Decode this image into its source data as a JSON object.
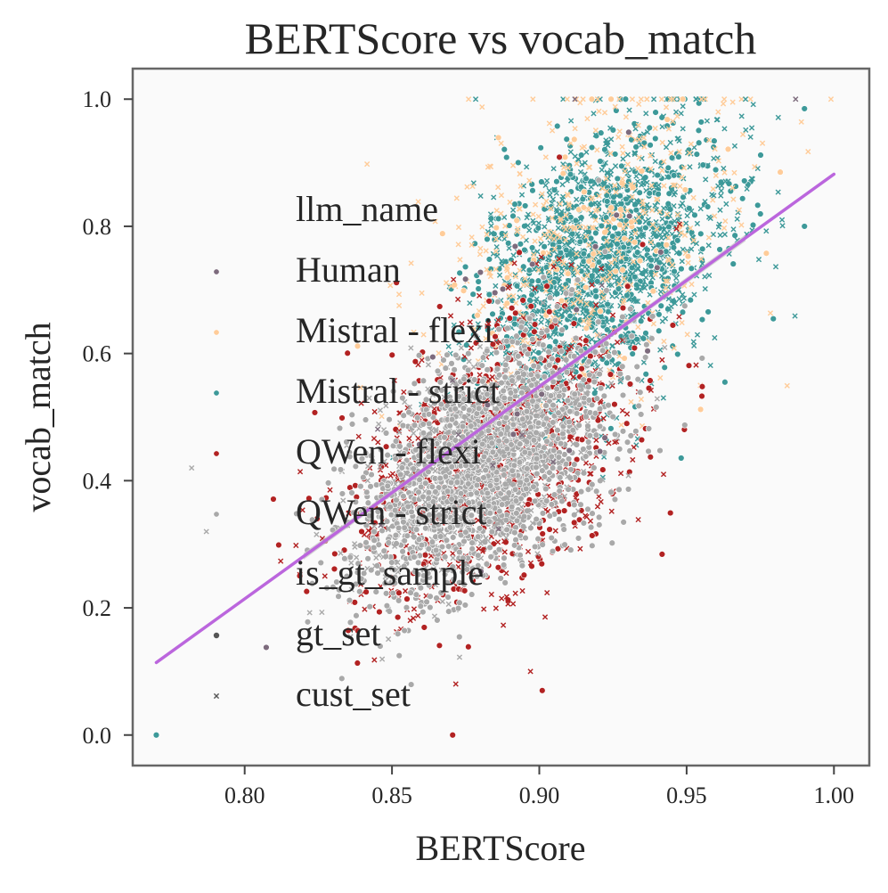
{
  "chart_data": {
    "type": "scatter",
    "title": "BERTScore vs vocab_match",
    "xlabel": "BERTScore",
    "ylabel": "vocab_match",
    "xlim": [
      0.762,
      1.012
    ],
    "ylim": [
      -0.048,
      1.048
    ],
    "xticks": [
      0.8,
      0.85,
      0.9,
      0.95,
      1.0
    ],
    "xtick_labels": [
      "0.80",
      "0.85",
      "0.90",
      "0.95",
      "1.00"
    ],
    "yticks": [
      0.0,
      0.2,
      0.4,
      0.6,
      0.8,
      1.0
    ],
    "ytick_labels": [
      "0.0",
      "0.2",
      "0.4",
      "0.6",
      "0.8",
      "1.0"
    ],
    "grid": false,
    "legend_placement": "center-left",
    "legend": {
      "hue_title": "llm_name",
      "hue_entries": [
        {
          "name": "Human",
          "color": "#7d6b7d"
        },
        {
          "name": "Mistral - flexi",
          "color": "#ffcc99"
        },
        {
          "name": "Mistral - strict",
          "color": "#3d9999"
        },
        {
          "name": "QWen - flexi",
          "color": "#b22222"
        },
        {
          "name": "QWen - strict",
          "color": "#a9a9a9"
        }
      ],
      "style_title": "is_gt_sample",
      "style_entries": [
        {
          "name": "gt_set",
          "marker": "circle",
          "color": "#555555"
        },
        {
          "name": "cust_set",
          "marker": "x",
          "color": "#555555"
        }
      ]
    },
    "regression_line": {
      "color": "#bb66dd",
      "x": [
        0.77,
        1.0
      ],
      "y": [
        0.114,
        0.882
      ],
      "ci_band": true
    },
    "clusters": [
      {
        "series": "Mistral - strict",
        "color": "#3d9999",
        "cx": 0.92,
        "cy": 0.74,
        "sx": 0.021,
        "sy": 0.1,
        "count": 1700,
        "x_frac": 0.58
      },
      {
        "series": "Mistral - flexi",
        "color": "#ffcc99",
        "cx": 0.915,
        "cy": 0.76,
        "sx": 0.027,
        "sy": 0.12,
        "count": 500,
        "x_frac": 0.85
      },
      {
        "series": "QWen - flexi",
        "color": "#b22222",
        "cx": 0.885,
        "cy": 0.44,
        "sx": 0.025,
        "sy": 0.11,
        "count": 950,
        "x_frac": 0.5
      },
      {
        "series": "QWen - strict",
        "color": "#a9a9a9",
        "cx": 0.88,
        "cy": 0.42,
        "sx": 0.021,
        "sy": 0.085,
        "count": 2300,
        "x_frac": 0.2
      },
      {
        "series": "Human",
        "color": "#7d6b7d",
        "cx": 0.9,
        "cy": 0.6,
        "sx": 0.03,
        "sy": 0.15,
        "count": 35,
        "x_frac": 0.3
      }
    ],
    "notable_points": [
      {
        "series": "Mistral - strict",
        "x": 0.77,
        "y": 0.0,
        "marker": "circle"
      },
      {
        "series": "Mistral - strict",
        "x": 0.99,
        "y": 0.8,
        "marker": "circle"
      },
      {
        "series": "Mistral - strict",
        "x": 0.99,
        "y": 0.985,
        "marker": "circle"
      },
      {
        "series": "QWen - flexi",
        "x": 0.901,
        "y": 0.07,
        "marker": "circle"
      },
      {
        "series": "QWen - flexi",
        "x": 0.897,
        "y": 0.1,
        "marker": "x"
      },
      {
        "series": "QWen - strict",
        "x": 0.787,
        "y": 0.32,
        "marker": "x"
      },
      {
        "series": "QWen - strict",
        "x": 0.782,
        "y": 0.42,
        "marker": "x"
      },
      {
        "series": "Mistral - flexi",
        "x": 0.876,
        "y": 1.0,
        "marker": "x"
      },
      {
        "series": "Mistral - flexi",
        "x": 0.999,
        "y": 1.0,
        "marker": "x"
      },
      {
        "series": "Mistral - strict",
        "x": 0.97,
        "y": 1.0,
        "marker": "x"
      },
      {
        "series": "Human",
        "x": 0.987,
        "y": 1.0,
        "marker": "x"
      },
      {
        "series": "Human",
        "x": 0.94,
        "y": 0.735,
        "marker": "circle"
      },
      {
        "series": "Mistral - strict",
        "x": 0.963,
        "y": 0.555,
        "marker": "circle"
      }
    ]
  }
}
